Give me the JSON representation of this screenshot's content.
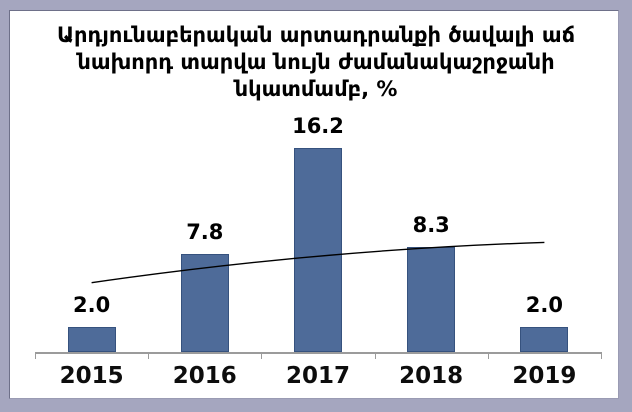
{
  "frame": {
    "border_color": "#a5a6bf",
    "background_color": "#ffffff"
  },
  "chart_data": {
    "type": "bar",
    "title": "Արդյունաբերական արտադրանքի ծավալի աճ նախորդ տարվա նույն ժամանակաշրջանի նկատմամբ, %",
    "title_lines": [
      "Արդյունաբերական արտադրանքի ծավալի աճ",
      "նախորդ տարվա նույն ժամանակաշրջանի",
      "նկատմամբ, %"
    ],
    "categories": [
      "2015",
      "2016",
      "2017",
      "2018",
      "2019"
    ],
    "values": [
      2.0,
      7.8,
      16.2,
      8.3,
      2.0
    ],
    "value_labels": [
      "2.0",
      "7.8",
      "16.2",
      "8.3",
      "2.0"
    ],
    "xlabel": "",
    "ylabel": "",
    "ylim": [
      0,
      18
    ],
    "grid": false,
    "legend": false,
    "y_axis_shown": false,
    "bar_color": "#4e6b99",
    "bar_border_color": "#36527e",
    "axis_color": "#9b9b9b",
    "text_color": "#000000",
    "trendline": {
      "color": "#000000",
      "description": "smooth trend curve rising left to right over bars",
      "values": {
        "start": 5.5,
        "mid": 7.6,
        "end": 8.7
      }
    }
  }
}
